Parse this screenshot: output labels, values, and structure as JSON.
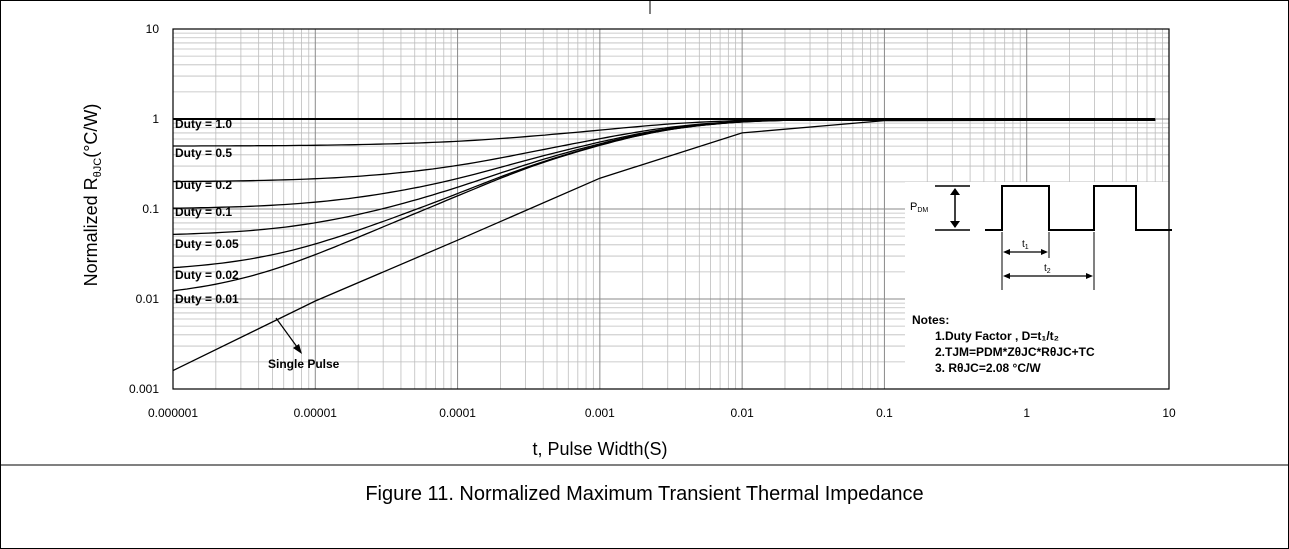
{
  "caption": "Figure 11. Normalized Maximum Transient Thermal Impedance",
  "chart_data": {
    "type": "line",
    "scale": {
      "x": "log",
      "y": "log"
    },
    "xlim": [
      1e-06,
      10
    ],
    "ylim": [
      0.001,
      10
    ],
    "x_ticks": [
      "0.000001",
      "0.00001",
      "0.0001",
      "0.001",
      "0.01",
      "0.1",
      "1",
      "10"
    ],
    "y_ticks": [
      "0.001",
      "0.01",
      "0.1",
      "1",
      "10"
    ],
    "xlabel": "t, Pulse Width(S)",
    "ylabel_main": "Normalized R",
    "ylabel_sub": "θJC",
    "ylabel_unit": "(°C/W)",
    "grid": true,
    "series": [
      {
        "name": "Duty = 1.0",
        "duty": 1.0
      },
      {
        "name": "Duty = 0.5",
        "duty": 0.5
      },
      {
        "name": "Duty = 0.2",
        "duty": 0.2
      },
      {
        "name": "Duty = 0.1",
        "duty": 0.1
      },
      {
        "name": "Duty = 0.05",
        "duty": 0.05
      },
      {
        "name": "Duty = 0.02",
        "duty": 0.02
      },
      {
        "name": "Duty = 0.01",
        "duty": 0.01
      },
      {
        "name": "Single Pulse",
        "duty": 0,
        "points": [
          [
            1e-06,
            0.0016
          ],
          [
            1e-05,
            0.0095
          ],
          [
            0.0001,
            0.045
          ],
          [
            0.001,
            0.22
          ],
          [
            0.01,
            0.7
          ],
          [
            0.1,
            0.96
          ],
          [
            8,
            0.97
          ]
        ]
      }
    ],
    "inset": {
      "pdm_main": "P",
      "pdm_sub": "DM",
      "t1_main": "t",
      "t1_sub": "1",
      "t2_main": "t",
      "t2_sub": "2"
    },
    "notes": {
      "title": "Notes:",
      "line1": "1.Duty Factor , D=t₁/t₂",
      "line2": "2.TJM=PDM*ZθJC*RθJC+TC",
      "line3": "3. RθJC=2.08 °C/W"
    }
  }
}
